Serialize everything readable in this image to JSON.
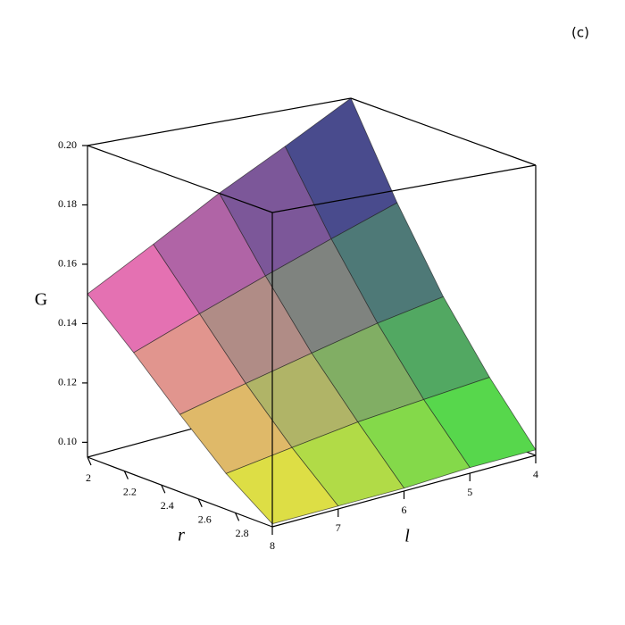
{
  "panel_label": "(c)",
  "chart_data": {
    "type": "surface",
    "xlabel": "r",
    "ylabel": "l",
    "zlabel": "G",
    "x": [
      2,
      2.25,
      2.5,
      2.75,
      3
    ],
    "y": [
      4,
      5,
      6,
      7,
      8
    ],
    "z": [
      [
        0.2,
        0.187,
        0.175,
        0.162,
        0.15
      ],
      [
        0.168,
        0.16,
        0.152,
        0.144,
        0.136
      ],
      [
        0.14,
        0.136,
        0.131,
        0.126,
        0.121
      ],
      [
        0.117,
        0.115,
        0.113,
        0.11,
        0.107
      ],
      [
        0.097,
        0.097,
        0.096,
        0.096,
        0.096
      ]
    ],
    "xlim": [
      2,
      3
    ],
    "xticks": [
      2,
      2.2,
      2.4,
      2.6,
      2.8
    ],
    "ylim": [
      4,
      8
    ],
    "yticks": [
      4,
      5,
      6,
      7,
      8
    ],
    "zlim": [
      0.095,
      0.2
    ],
    "zticks": [
      {
        "value": 0.1,
        "label": "0.10"
      },
      {
        "value": 0.12,
        "label": "0.12"
      },
      {
        "value": 0.14,
        "label": "0.14"
      },
      {
        "value": 0.16,
        "label": "0.16"
      },
      {
        "value": 0.18,
        "label": "0.18"
      },
      {
        "value": 0.2,
        "label": "0.20"
      }
    ],
    "corner_colors": {
      "low_x_high_y": "#ff66cc",
      "low_x_low_y": "#2c2c90",
      "high_x_low_y": "#44ee44",
      "high_x_high_y": "#f2f030"
    },
    "mesh": true
  }
}
